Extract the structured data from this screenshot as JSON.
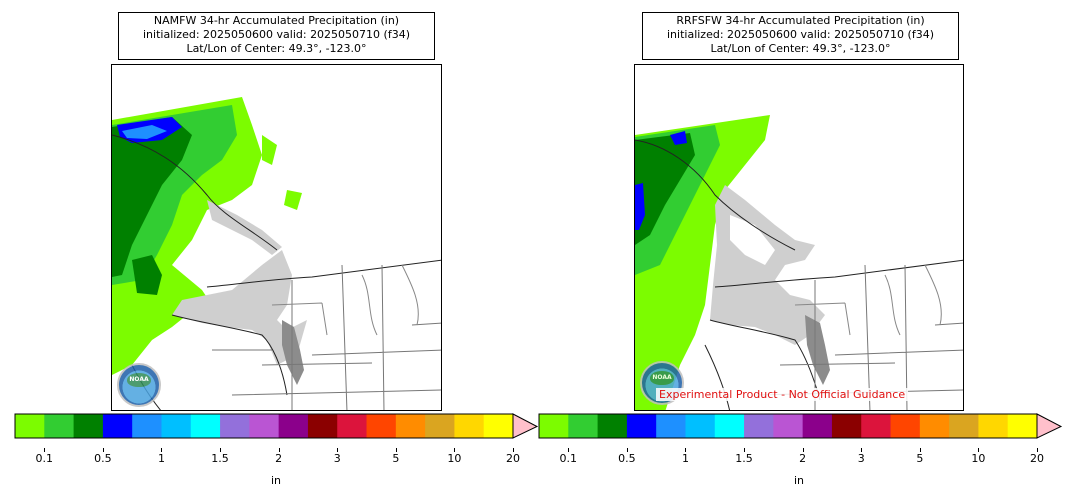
{
  "colorbar": {
    "colors": [
      "#7cfc00",
      "#32cd32",
      "#008000",
      "#0000ff",
      "#1e90ff",
      "#00bfff",
      "#00ffff",
      "#9370db",
      "#ba55d3",
      "#8b008b",
      "#8b0000",
      "#dc143c",
      "#ff4500",
      "#ff8c00",
      "#daa520",
      "#ffd700",
      "#ffff00",
      "#ffc0cb"
    ],
    "tick_labels": [
      "0.1",
      "0.5",
      "1",
      "1.5",
      "2",
      "3",
      "5",
      "10",
      "20"
    ],
    "unit_label": "in"
  },
  "panels": [
    {
      "title_line1": "NAMFW 34-hr Accumulated Precipitation (in)",
      "title_line2": "initialized: 2025050600 valid: 2025050710 (f34)",
      "title_line3": "Lat/Lon of Center: 49.3°, -123.0°",
      "logo_text": "NOAA",
      "disclaimer": ""
    },
    {
      "title_line1": "RRFSFW 34-hr Accumulated Precipitation (in)",
      "title_line2": "initialized: 2025050600 valid: 2025050710 (f34)",
      "title_line3": "Lat/Lon of Center: 49.3°, -123.0°",
      "logo_text": "NOAA",
      "disclaimer": "Experimental Product - Not Official Guidance"
    }
  ]
}
